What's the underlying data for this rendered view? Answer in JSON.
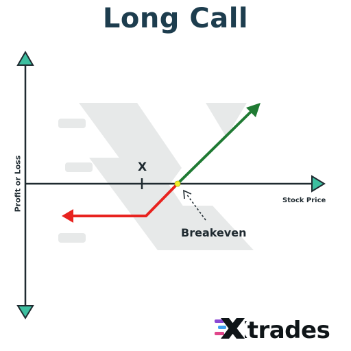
{
  "title": "Long Call",
  "axes": {
    "y_label": "Profit or Loss",
    "x_label": "Stock Price"
  },
  "labels": {
    "strike": "X",
    "breakeven": "Breakeven"
  },
  "brand": {
    "name": "Xtrades"
  },
  "colors": {
    "title": "#1d3d4e",
    "axis": "#1f2a30",
    "arrowhead": "#3dbfa0",
    "profit": "#1f7a33",
    "loss": "#e8231f",
    "breakeven_dot": "#f2ef2a",
    "watermark": "#e6e8e8"
  }
}
